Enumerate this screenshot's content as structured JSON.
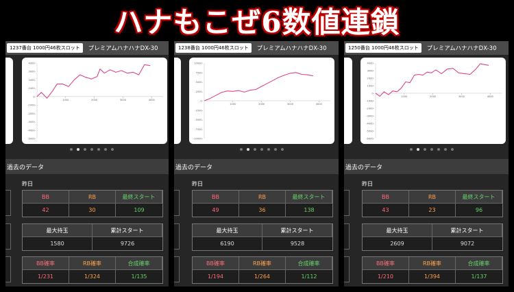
{
  "headline": "ハナもこぜ6数値連鎖",
  "panels": [
    {
      "machine_tag": "1237番台 1000円46枚スロット",
      "machine_name": "プレミアムハナハナDX-30",
      "section_title": "過去のデータ",
      "day_label": "昨日",
      "row1_labels": {
        "bb": "BB",
        "rb": "RB",
        "final_start": "最終スタート"
      },
      "row1_values": {
        "bb": "42",
        "rb": "30",
        "final_start": "109"
      },
      "row2_labels": {
        "max_balls": "最大持玉",
        "total_start": "累計スタート"
      },
      "row2_values": {
        "max_balls": "1580",
        "total_start": "9726"
      },
      "row3_labels": {
        "bb_rate": "BB確率",
        "rb_rate": "RB確率",
        "combined_rate": "合成確率"
      },
      "row3_values": {
        "bb_rate": "1/231",
        "rb_rate": "1/324",
        "combined_rate": "1/135"
      },
      "chart_data": {
        "type": "line",
        "y_ticks": [
          "4000-",
          "3000-",
          "2000-",
          "1000-",
          "0-",
          "-1000-",
          "-2000-",
          "-3000-",
          "-4000-",
          "-5000-"
        ],
        "x_ticks": [
          "1000",
          "2000",
          "3000",
          "4000"
        ],
        "ylim": [
          -5000,
          4000
        ],
        "xlim": [
          0,
          4400
        ],
        "x": [
          0,
          150,
          350,
          550,
          700,
          900,
          1100,
          1300,
          1500,
          1700,
          1900,
          2100,
          2200,
          2350,
          2550,
          2750,
          2950,
          3150,
          3350,
          3550,
          3750,
          3950
        ],
        "y": [
          0,
          500,
          -200,
          700,
          1500,
          1500,
          1200,
          2000,
          2600,
          2300,
          2100,
          2400,
          3300,
          2800,
          3200,
          2900,
          3100,
          2800,
          2900,
          2600,
          3800,
          3700
        ]
      }
    },
    {
      "machine_tag": "1238番台 1000円46枚スロット",
      "machine_name": "プレミアムハナハナDX-30",
      "section_title": "過去のデータ",
      "day_label": "昨日",
      "row1_labels": {
        "bb": "BB",
        "rb": "RB",
        "final_start": "最終スタート"
      },
      "row1_values": {
        "bb": "49",
        "rb": "36",
        "final_start": "138"
      },
      "row2_labels": {
        "max_balls": "最大持玉",
        "total_start": "累計スタート"
      },
      "row2_values": {
        "max_balls": "6190",
        "total_start": "9528"
      },
      "row3_labels": {
        "bb_rate": "BB確率",
        "rb_rate": "RB確率",
        "combined_rate": "合成確率"
      },
      "row3_values": {
        "bb_rate": "1/194",
        "rb_rate": "1/264",
        "combined_rate": "1/112"
      },
      "chart_data": {
        "type": "line",
        "y_ticks": [
          "10000-",
          "7500-",
          "5000-",
          "2500-",
          "0-",
          "-2500-",
          "-5000-",
          "-7500-",
          "-10000-"
        ],
        "x_ticks": [
          "1000",
          "2000",
          "3000",
          "4000"
        ],
        "ylim": [
          -10000,
          10000
        ],
        "xlim": [
          0,
          4400
        ],
        "x": [
          0,
          200,
          400,
          600,
          800,
          1000,
          1200,
          1400,
          1600,
          1800,
          2000,
          2200,
          2400,
          2600,
          2800,
          3000,
          3200,
          3400,
          3600,
          3800
        ],
        "y": [
          0,
          600,
          1400,
          2200,
          2600,
          2500,
          2700,
          2300,
          2800,
          3000,
          3800,
          4600,
          5400,
          6200,
          6800,
          7300,
          7500,
          7000,
          6900,
          6600
        ]
      }
    },
    {
      "machine_tag": "1250番台 1000円46枚スロット",
      "machine_name": "プレミアムハナハナDX-30",
      "section_title": "過去のデータ",
      "day_label": "昨日",
      "row1_labels": {
        "bb": "BB",
        "rb": "RB",
        "final_start": "最終スタート"
      },
      "row1_values": {
        "bb": "43",
        "rb": "23",
        "final_start": "96"
      },
      "row2_labels": {
        "max_balls": "最大持玉",
        "total_start": "累計スタート"
      },
      "row2_values": {
        "max_balls": "2609",
        "total_start": "9072"
      },
      "row3_labels": {
        "bb_rate": "BB確率",
        "rb_rate": "RB確率",
        "combined_rate": "合成確率"
      },
      "row3_values": {
        "bb_rate": "1/210",
        "rb_rate": "1/394",
        "combined_rate": "1/137"
      },
      "chart_data": {
        "type": "line",
        "y_ticks": [
          "4000-",
          "3000-",
          "2000-",
          "1000-",
          "0-",
          "-1000-",
          "-2000-",
          "-3000-",
          "-4000-",
          "-5000-",
          "-6000-"
        ],
        "x_ticks": [
          "1000",
          "2000",
          "3000",
          "4000"
        ],
        "ylim": [
          -6000,
          4000
        ],
        "xlim": [
          0,
          4400
        ],
        "x": [
          0,
          150,
          300,
          450,
          600,
          750,
          900,
          1050,
          1200,
          1350,
          1500,
          1650,
          1800,
          1950,
          2100,
          2300,
          2500,
          2700,
          2900,
          3100,
          3300,
          3500,
          3650,
          3800,
          3950
        ],
        "y": [
          0,
          -400,
          200,
          -200,
          300,
          200,
          700,
          1500,
          1400,
          2400,
          2500,
          2400,
          2800,
          2700,
          3100,
          2600,
          3200,
          3300,
          2700,
          2600,
          2500,
          3200,
          3900,
          3800,
          3700
        ]
      }
    }
  ]
}
